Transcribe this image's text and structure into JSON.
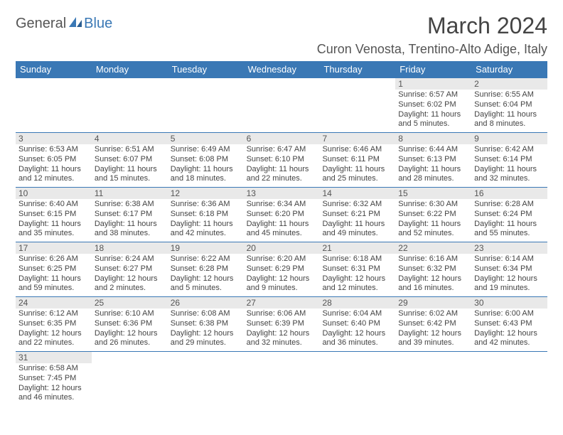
{
  "logo": {
    "text1": "General",
    "text2": "Blue"
  },
  "title": "March 2024",
  "location": "Curon Venosta, Trentino-Alto Adige, Italy",
  "colors": {
    "header_bg": "#3a78b5",
    "header_fg": "#ffffff",
    "daynum_bg": "#e9e9e9",
    "row_border": "#3a78b5",
    "logo_blue": "#3a78b5",
    "text": "#444444"
  },
  "day_headers": [
    "Sunday",
    "Monday",
    "Tuesday",
    "Wednesday",
    "Thursday",
    "Friday",
    "Saturday"
  ],
  "weeks": [
    [
      {
        "n": "",
        "sunrise": "",
        "sunset": "",
        "day": ""
      },
      {
        "n": "",
        "sunrise": "",
        "sunset": "",
        "day": ""
      },
      {
        "n": "",
        "sunrise": "",
        "sunset": "",
        "day": ""
      },
      {
        "n": "",
        "sunrise": "",
        "sunset": "",
        "day": ""
      },
      {
        "n": "",
        "sunrise": "",
        "sunset": "",
        "day": ""
      },
      {
        "n": "1",
        "sunrise": "Sunrise: 6:57 AM",
        "sunset": "Sunset: 6:02 PM",
        "day": "Daylight: 11 hours and 5 minutes."
      },
      {
        "n": "2",
        "sunrise": "Sunrise: 6:55 AM",
        "sunset": "Sunset: 6:04 PM",
        "day": "Daylight: 11 hours and 8 minutes."
      }
    ],
    [
      {
        "n": "3",
        "sunrise": "Sunrise: 6:53 AM",
        "sunset": "Sunset: 6:05 PM",
        "day": "Daylight: 11 hours and 12 minutes."
      },
      {
        "n": "4",
        "sunrise": "Sunrise: 6:51 AM",
        "sunset": "Sunset: 6:07 PM",
        "day": "Daylight: 11 hours and 15 minutes."
      },
      {
        "n": "5",
        "sunrise": "Sunrise: 6:49 AM",
        "sunset": "Sunset: 6:08 PM",
        "day": "Daylight: 11 hours and 18 minutes."
      },
      {
        "n": "6",
        "sunrise": "Sunrise: 6:47 AM",
        "sunset": "Sunset: 6:10 PM",
        "day": "Daylight: 11 hours and 22 minutes."
      },
      {
        "n": "7",
        "sunrise": "Sunrise: 6:46 AM",
        "sunset": "Sunset: 6:11 PM",
        "day": "Daylight: 11 hours and 25 minutes."
      },
      {
        "n": "8",
        "sunrise": "Sunrise: 6:44 AM",
        "sunset": "Sunset: 6:13 PM",
        "day": "Daylight: 11 hours and 28 minutes."
      },
      {
        "n": "9",
        "sunrise": "Sunrise: 6:42 AM",
        "sunset": "Sunset: 6:14 PM",
        "day": "Daylight: 11 hours and 32 minutes."
      }
    ],
    [
      {
        "n": "10",
        "sunrise": "Sunrise: 6:40 AM",
        "sunset": "Sunset: 6:15 PM",
        "day": "Daylight: 11 hours and 35 minutes."
      },
      {
        "n": "11",
        "sunrise": "Sunrise: 6:38 AM",
        "sunset": "Sunset: 6:17 PM",
        "day": "Daylight: 11 hours and 38 minutes."
      },
      {
        "n": "12",
        "sunrise": "Sunrise: 6:36 AM",
        "sunset": "Sunset: 6:18 PM",
        "day": "Daylight: 11 hours and 42 minutes."
      },
      {
        "n": "13",
        "sunrise": "Sunrise: 6:34 AM",
        "sunset": "Sunset: 6:20 PM",
        "day": "Daylight: 11 hours and 45 minutes."
      },
      {
        "n": "14",
        "sunrise": "Sunrise: 6:32 AM",
        "sunset": "Sunset: 6:21 PM",
        "day": "Daylight: 11 hours and 49 minutes."
      },
      {
        "n": "15",
        "sunrise": "Sunrise: 6:30 AM",
        "sunset": "Sunset: 6:22 PM",
        "day": "Daylight: 11 hours and 52 minutes."
      },
      {
        "n": "16",
        "sunrise": "Sunrise: 6:28 AM",
        "sunset": "Sunset: 6:24 PM",
        "day": "Daylight: 11 hours and 55 minutes."
      }
    ],
    [
      {
        "n": "17",
        "sunrise": "Sunrise: 6:26 AM",
        "sunset": "Sunset: 6:25 PM",
        "day": "Daylight: 11 hours and 59 minutes."
      },
      {
        "n": "18",
        "sunrise": "Sunrise: 6:24 AM",
        "sunset": "Sunset: 6:27 PM",
        "day": "Daylight: 12 hours and 2 minutes."
      },
      {
        "n": "19",
        "sunrise": "Sunrise: 6:22 AM",
        "sunset": "Sunset: 6:28 PM",
        "day": "Daylight: 12 hours and 5 minutes."
      },
      {
        "n": "20",
        "sunrise": "Sunrise: 6:20 AM",
        "sunset": "Sunset: 6:29 PM",
        "day": "Daylight: 12 hours and 9 minutes."
      },
      {
        "n": "21",
        "sunrise": "Sunrise: 6:18 AM",
        "sunset": "Sunset: 6:31 PM",
        "day": "Daylight: 12 hours and 12 minutes."
      },
      {
        "n": "22",
        "sunrise": "Sunrise: 6:16 AM",
        "sunset": "Sunset: 6:32 PM",
        "day": "Daylight: 12 hours and 16 minutes."
      },
      {
        "n": "23",
        "sunrise": "Sunrise: 6:14 AM",
        "sunset": "Sunset: 6:34 PM",
        "day": "Daylight: 12 hours and 19 minutes."
      }
    ],
    [
      {
        "n": "24",
        "sunrise": "Sunrise: 6:12 AM",
        "sunset": "Sunset: 6:35 PM",
        "day": "Daylight: 12 hours and 22 minutes."
      },
      {
        "n": "25",
        "sunrise": "Sunrise: 6:10 AM",
        "sunset": "Sunset: 6:36 PM",
        "day": "Daylight: 12 hours and 26 minutes."
      },
      {
        "n": "26",
        "sunrise": "Sunrise: 6:08 AM",
        "sunset": "Sunset: 6:38 PM",
        "day": "Daylight: 12 hours and 29 minutes."
      },
      {
        "n": "27",
        "sunrise": "Sunrise: 6:06 AM",
        "sunset": "Sunset: 6:39 PM",
        "day": "Daylight: 12 hours and 32 minutes."
      },
      {
        "n": "28",
        "sunrise": "Sunrise: 6:04 AM",
        "sunset": "Sunset: 6:40 PM",
        "day": "Daylight: 12 hours and 36 minutes."
      },
      {
        "n": "29",
        "sunrise": "Sunrise: 6:02 AM",
        "sunset": "Sunset: 6:42 PM",
        "day": "Daylight: 12 hours and 39 minutes."
      },
      {
        "n": "30",
        "sunrise": "Sunrise: 6:00 AM",
        "sunset": "Sunset: 6:43 PM",
        "day": "Daylight: 12 hours and 42 minutes."
      }
    ],
    [
      {
        "n": "31",
        "sunrise": "Sunrise: 6:58 AM",
        "sunset": "Sunset: 7:45 PM",
        "day": "Daylight: 12 hours and 46 minutes."
      },
      {
        "n": "",
        "sunrise": "",
        "sunset": "",
        "day": ""
      },
      {
        "n": "",
        "sunrise": "",
        "sunset": "",
        "day": ""
      },
      {
        "n": "",
        "sunrise": "",
        "sunset": "",
        "day": ""
      },
      {
        "n": "",
        "sunrise": "",
        "sunset": "",
        "day": ""
      },
      {
        "n": "",
        "sunrise": "",
        "sunset": "",
        "day": ""
      },
      {
        "n": "",
        "sunrise": "",
        "sunset": "",
        "day": ""
      }
    ]
  ]
}
